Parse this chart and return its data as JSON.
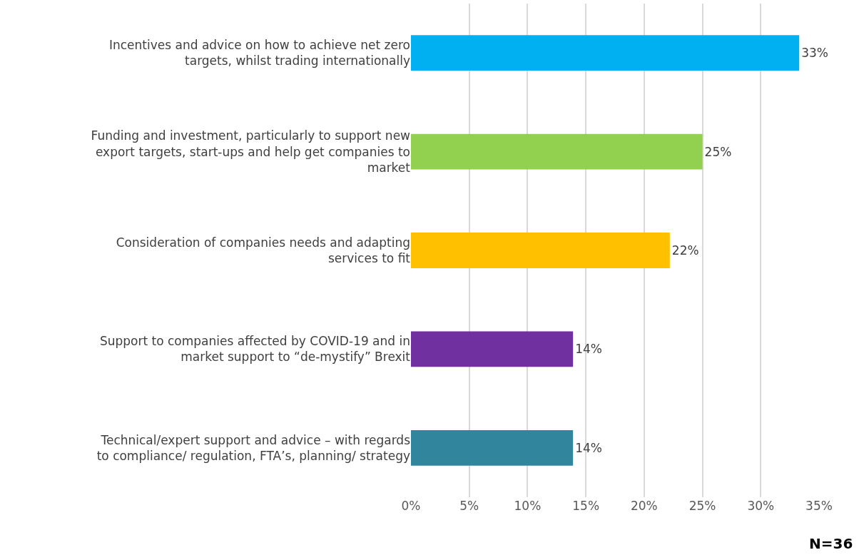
{
  "chart_data": {
    "type": "bar",
    "orientation": "horizontal",
    "categories": [
      "Incentives and advice on how to achieve net zero targets, whilst trading internationally",
      "Funding and investment, particularly to support new export targets, start-ups and help get companies to market",
      "Consideration of companies needs and adapting services to fit",
      "Support to companies affected by COVID-19 and in market support to “de-mystify” Brexit",
      "Technical/expert support and advice – with regards to compliance/ regulation, FTA’s, planning/ strategy"
    ],
    "values": [
      33.3,
      25,
      22.2,
      13.9,
      13.9
    ],
    "colors": [
      "#00b0f0",
      "#92d050",
      "#ffc000",
      "#7030a0",
      "#31859c"
    ],
    "value_labels": [
      "33%",
      "25%",
      "22%",
      "14%",
      "14%"
    ],
    "xlim": [
      0,
      35
    ],
    "xticks": [
      {
        "value": 0,
        "label": "0%"
      },
      {
        "value": 5,
        "label": "5%"
      },
      {
        "value": 10,
        "label": "10%"
      },
      {
        "value": 15,
        "label": "15%"
      },
      {
        "value": 20,
        "label": "20%"
      },
      {
        "value": 25,
        "label": "25%"
      },
      {
        "value": 30,
        "label": "30%"
      },
      {
        "value": 35,
        "label": "35%"
      }
    ],
    "grid": "x",
    "annotations": [
      "N=36"
    ]
  }
}
